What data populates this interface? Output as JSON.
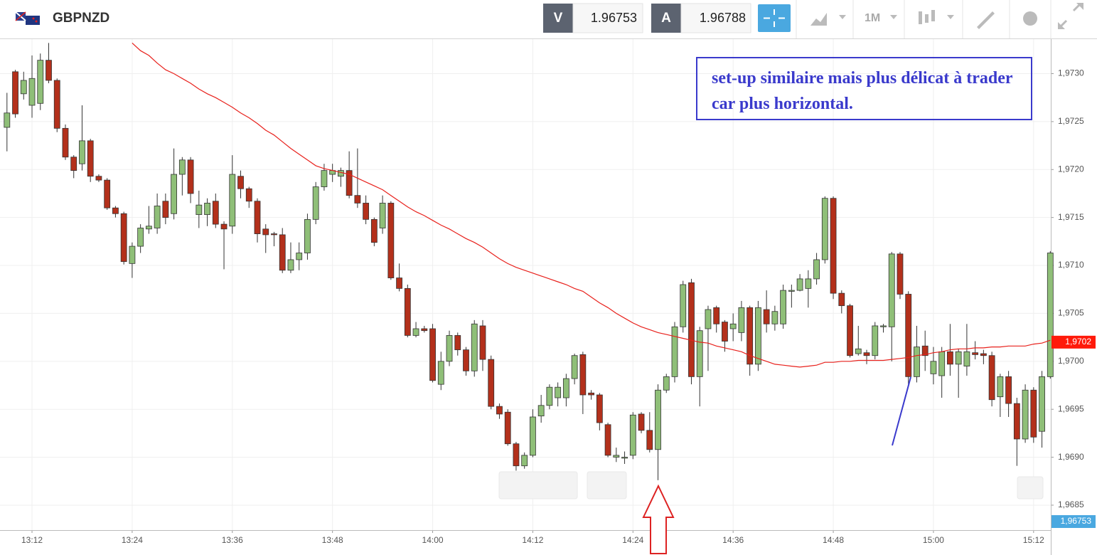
{
  "header": {
    "symbol": "GBPNZD",
    "bid_label": "V",
    "bid": "1.96753",
    "ask_label": "A",
    "ask": "1.96788",
    "timeframe": "1M"
  },
  "chart_data": {
    "type": "candlestick",
    "up_color": "#8fbf78",
    "down_color": "#b3301b",
    "grid": true,
    "x": [
      "13:09",
      "13:10",
      "13:11",
      "13:12",
      "13:13",
      "13:14",
      "13:15",
      "13:16",
      "13:17",
      "13:18",
      "13:19",
      "13:20",
      "13:21",
      "13:22",
      "13:23",
      "13:24",
      "13:25",
      "13:26",
      "13:27",
      "13:28",
      "13:29",
      "13:30",
      "13:31",
      "13:32",
      "13:33",
      "13:34",
      "13:35",
      "13:36",
      "13:37",
      "13:38",
      "13:39",
      "13:40",
      "13:41",
      "13:42",
      "13:43",
      "13:44",
      "13:45",
      "13:46",
      "13:47",
      "13:48",
      "13:49",
      "13:50",
      "13:51",
      "13:52",
      "13:53",
      "13:54",
      "13:55",
      "13:56",
      "13:57",
      "13:58",
      "13:59",
      "14:00",
      "14:01",
      "14:02",
      "14:03",
      "14:04",
      "14:05",
      "14:06",
      "14:07",
      "14:08",
      "14:09",
      "14:10",
      "14:11",
      "14:12",
      "14:13",
      "14:14",
      "14:15",
      "14:16",
      "14:17",
      "14:18",
      "14:19",
      "14:20",
      "14:21",
      "14:22",
      "14:23",
      "14:24",
      "14:25",
      "14:26",
      "14:27",
      "14:28",
      "14:29",
      "14:30",
      "14:31",
      "14:32",
      "14:33",
      "14:34",
      "14:35",
      "14:36",
      "14:37",
      "14:38",
      "14:39",
      "14:40",
      "14:41",
      "14:42",
      "14:43",
      "14:44",
      "14:45",
      "14:46",
      "14:47",
      "14:48",
      "14:49",
      "14:50",
      "14:51",
      "14:52",
      "14:53",
      "14:54",
      "14:55",
      "14:56",
      "14:57",
      "14:58",
      "14:59",
      "15:00",
      "15:01",
      "15:02",
      "15:03",
      "15:04",
      "15:05",
      "15:06",
      "15:07",
      "15:08",
      "15:09",
      "15:10",
      "15:11",
      "15:12",
      "15:13",
      "15:14"
    ],
    "open": [
      1.97244,
      1.97302,
      1.97279,
      1.97267,
      1.97269,
      1.97314,
      1.97293,
      1.97243,
      1.97213,
      1.97206,
      1.9723,
      1.97193,
      1.97189,
      1.9716,
      1.97154,
      1.97102,
      1.9712,
      1.97138,
      1.97139,
      1.97167,
      1.97154,
      1.97195,
      1.9721,
      1.97153,
      1.97153,
      1.97167,
      1.97143,
      1.97141,
      1.97193,
      1.9718,
      1.97167,
      1.97138,
      1.97133,
      1.97132,
      1.97095,
      1.97106,
      1.97113,
      1.97148,
      1.97182,
      1.97195,
      1.97193,
      1.97199,
      1.97173,
      1.97165,
      1.97148,
      1.97139,
      1.97165,
      1.97087,
      1.97076,
      1.97027,
      1.97034,
      1.97034,
      1.96976,
      1.97,
      1.97027,
      1.97012,
      1.9699,
      1.97037,
      1.97002,
      1.96953,
      1.96947,
      1.96914,
      1.96891,
      1.96902,
      1.96943,
      1.96954,
      1.96962,
      1.96962,
      1.96982,
      1.97007,
      1.96967,
      1.96965,
      1.96934,
      1.969,
      1.96899,
      1.96902,
      1.96945,
      1.96928,
      1.96908,
      1.9697,
      1.96984,
      1.97036,
      1.97082,
      1.96984,
      1.97034,
      1.97056,
      1.97041,
      1.97034,
      1.9703,
      1.97056,
      1.96997,
      1.97054,
      1.97039,
      1.97039,
      1.97073,
      1.97074,
      1.97076,
      1.97086,
      1.97106,
      1.9717,
      1.97071,
      1.97058,
      1.97008,
      1.97009,
      1.97006,
      1.97036,
      1.97036,
      1.97112,
      1.9707,
      1.96984,
      1.97016,
      1.96987,
      1.96985,
      1.9701,
      1.96997,
      1.96995,
      1.97009,
      1.97008,
      1.97006,
      1.96963,
      1.96984,
      1.96956,
      1.96919,
      1.9697,
      1.96927,
      1.96984
    ],
    "high": [
      1.9728,
      1.97304,
      1.97302,
      1.97319,
      1.97321,
      1.97332,
      1.97295,
      1.97247,
      1.97215,
      1.97267,
      1.97232,
      1.97195,
      1.97191,
      1.97162,
      1.97156,
      1.97124,
      1.97143,
      1.97162,
      1.97175,
      1.97175,
      1.97222,
      1.97213,
      1.97213,
      1.97178,
      1.9717,
      1.97175,
      1.97146,
      1.97215,
      1.97199,
      1.97182,
      1.9717,
      1.97143,
      1.97135,
      1.97139,
      1.97124,
      1.97124,
      1.97154,
      1.97187,
      1.97206,
      1.97206,
      1.97202,
      1.97219,
      1.97222,
      1.97173,
      1.9715,
      1.97173,
      1.97167,
      1.97102,
      1.9708,
      1.97041,
      1.97037,
      1.97039,
      1.9701,
      1.97032,
      1.9703,
      1.97015,
      1.97043,
      1.97043,
      1.97006,
      1.96956,
      1.9695,
      1.96916,
      1.96905,
      1.9695,
      1.96965,
      1.96976,
      1.96978,
      1.96987,
      1.97008,
      1.9701,
      1.9697,
      1.96967,
      1.96936,
      1.9691,
      1.96906,
      1.96947,
      1.96947,
      1.96947,
      1.96976,
      1.96987,
      1.97041,
      1.97084,
      1.97086,
      1.97036,
      1.97058,
      1.97058,
      1.97043,
      1.9705,
      1.97063,
      1.97058,
      1.97063,
      1.97074,
      1.97058,
      1.9708,
      1.9708,
      1.97091,
      1.97095,
      1.97113,
      1.97172,
      1.97172,
      1.97074,
      1.9706,
      1.97037,
      1.97012,
      1.97041,
      1.97039,
      1.97114,
      1.97114,
      1.97073,
      1.97037,
      1.97032,
      1.97015,
      1.97015,
      1.97039,
      1.97013,
      1.97039,
      1.97021,
      1.97012,
      1.9701,
      1.96987,
      1.9699,
      1.96962,
      1.96976,
      1.96973,
      1.9699,
      1.97115
    ],
    "low": [
      1.97219,
      1.97254,
      1.97273,
      1.97254,
      1.97262,
      1.9729,
      1.97239,
      1.9721,
      1.97191,
      1.97199,
      1.97187,
      1.97187,
      1.97158,
      1.9715,
      1.97101,
      1.97087,
      1.97113,
      1.97133,
      1.97133,
      1.97143,
      1.97148,
      1.97173,
      1.97165,
      1.97139,
      1.97141,
      1.97139,
      1.97096,
      1.97133,
      1.9717,
      1.9716,
      1.97124,
      1.97113,
      1.9712,
      1.97092,
      1.97092,
      1.97095,
      1.97106,
      1.97143,
      1.97178,
      1.97187,
      1.97182,
      1.9717,
      1.9716,
      1.97143,
      1.9712,
      1.97133,
      1.97085,
      1.97073,
      1.97025,
      1.97025,
      1.9703,
      1.96978,
      1.9697,
      1.96995,
      1.97006,
      1.96985,
      1.96984,
      1.9699,
      1.9695,
      1.9694,
      1.96912,
      1.96886,
      1.96888,
      1.969,
      1.96936,
      1.9695,
      1.96953,
      1.96953,
      1.96976,
      1.96945,
      1.9696,
      1.96928,
      1.969,
      1.96895,
      1.96893,
      1.96898,
      1.96925,
      1.96905,
      1.96876,
      1.96967,
      1.96978,
      1.9703,
      1.96976,
      1.96953,
      1.9699,
      1.9703,
      1.9701,
      1.97021,
      1.97021,
      1.96985,
      1.9699,
      1.9703,
      1.97032,
      1.97034,
      1.97056,
      1.97073,
      1.97056,
      1.9708,
      1.97102,
      1.97065,
      1.9705,
      1.97004,
      1.97006,
      1.96997,
      1.97002,
      1.9703,
      1.97,
      1.97065,
      1.96976,
      1.96978,
      1.9699,
      1.96976,
      1.96962,
      1.96985,
      1.96962,
      1.96985,
      1.97002,
      1.96997,
      1.96953,
      1.96942,
      1.96942,
      1.96891,
      1.96915,
      1.96915,
      1.9691,
      1.96982
    ],
    "close": [
      1.97259,
      1.97258,
      1.97293,
      1.97295,
      1.97314,
      1.97293,
      1.97243,
      1.97213,
      1.97199,
      1.9723,
      1.97193,
      1.97189,
      1.9716,
      1.97154,
      1.97104,
      1.9712,
      1.97139,
      1.97141,
      1.97162,
      1.9715,
      1.97195,
      1.9721,
      1.97175,
      1.97163,
      1.97165,
      1.97143,
      1.97138,
      1.97195,
      1.9718,
      1.97167,
      1.97133,
      1.97132,
      1.97132,
      1.97095,
      1.97106,
      1.97113,
      1.97148,
      1.97182,
      1.97199,
      1.97199,
      1.97199,
      1.97173,
      1.97165,
      1.97148,
      1.97124,
      1.97165,
      1.97087,
      1.97076,
      1.97027,
      1.97034,
      1.97032,
      1.9698,
      1.97,
      1.97027,
      1.97012,
      1.9699,
      1.97039,
      1.97002,
      1.96953,
      1.96945,
      1.96914,
      1.96891,
      1.96902,
      1.96942,
      1.96954,
      1.96973,
      1.96973,
      1.96982,
      1.97006,
      1.96965,
      1.96965,
      1.96936,
      1.96902,
      1.96902,
      1.969,
      1.96944,
      1.96928,
      1.96908,
      1.9697,
      1.96984,
      1.97036,
      1.9708,
      1.96984,
      1.97032,
      1.97054,
      1.97039,
      1.97021,
      1.97039,
      1.97056,
      1.96997,
      1.97056,
      1.97039,
      1.97052,
      1.97074,
      1.97074,
      1.97086,
      1.97086,
      1.97106,
      1.9717,
      1.97071,
      1.97058,
      1.97006,
      1.97013,
      1.97006,
      1.97037,
      1.97037,
      1.97112,
      1.9707,
      1.96984,
      1.97015,
      1.97006,
      1.97,
      1.9701,
      1.96997,
      1.9701,
      1.9701,
      1.97007,
      1.97006,
      1.9696,
      1.96984,
      1.96956,
      1.96919,
      1.9697,
      1.96921,
      1.96984,
      1.97113
    ],
    "moving_average": {
      "color": "#e8211c",
      "values": [
        null,
        null,
        null,
        null,
        null,
        null,
        null,
        null,
        null,
        null,
        null,
        null,
        null,
        null,
        null,
        1.97332,
        1.97324,
        1.97319,
        1.97311,
        1.97304,
        1.973,
        1.97295,
        1.9729,
        1.97284,
        1.97279,
        1.97275,
        1.9727,
        1.97265,
        1.97259,
        1.97254,
        1.97248,
        1.97241,
        1.97236,
        1.97229,
        1.97222,
        1.97216,
        1.9721,
        1.97204,
        1.97201,
        1.97199,
        1.97197,
        1.97195,
        1.97191,
        1.97187,
        1.97183,
        1.97179,
        1.97173,
        1.97167,
        1.97161,
        1.97156,
        1.97152,
        1.97147,
        1.97142,
        1.97138,
        1.97133,
        1.97128,
        1.97124,
        1.97119,
        1.97113,
        1.97107,
        1.97102,
        1.97098,
        1.97095,
        1.97092,
        1.97089,
        1.97086,
        1.97083,
        1.9708,
        1.97076,
        1.97073,
        1.97067,
        1.97061,
        1.97056,
        1.9705,
        1.97045,
        1.9704,
        1.97036,
        1.97033,
        1.9703,
        1.97028,
        1.97026,
        1.97024,
        1.97022,
        1.9702,
        1.97019,
        1.97016,
        1.97014,
        1.97012,
        1.9701,
        1.97006,
        1.97003,
        1.97,
        1.96997,
        1.96996,
        1.96995,
        1.96994,
        1.96995,
        1.96996,
        1.96999,
        1.96999,
        1.97,
        1.97,
        1.97001,
        1.97001,
        1.97001,
        1.97001,
        1.97002,
        1.97003,
        1.97004,
        1.97006,
        1.97007,
        1.97009,
        1.9701,
        1.97012,
        1.97013,
        1.97013,
        1.97014,
        1.97014,
        1.97015,
        1.97015,
        1.97016,
        1.97016,
        1.97016,
        1.97018,
        1.97019,
        1.97022
      ]
    },
    "ylim": [
      1.96824,
      1.97336
    ],
    "yticks": [
      {
        "value": 1.9685,
        "label": "1,9685"
      },
      {
        "value": 1.969,
        "label": "1,9690"
      },
      {
        "value": 1.9695,
        "label": "1,9695"
      },
      {
        "value": 1.97,
        "label": "1,9700"
      },
      {
        "value": 1.9705,
        "label": "1,9705"
      },
      {
        "value": 1.971,
        "label": "1,9710"
      },
      {
        "value": 1.9715,
        "label": "1,9715"
      },
      {
        "value": 1.972,
        "label": "1,9720"
      },
      {
        "value": 1.9725,
        "label": "1,9725"
      },
      {
        "value": 1.973,
        "label": "1,9730"
      }
    ],
    "xticks": [
      "13:12",
      "13:24",
      "13:36",
      "13:48",
      "14:00",
      "14:12",
      "14:24",
      "14:36",
      "14:48",
      "15:00",
      "15:12"
    ],
    "price_tags": [
      {
        "value": 1.9702,
        "label": "1,9702",
        "color": "#ff1a0a"
      },
      {
        "value": 1.96753,
        "label": "1,96753",
        "color": "#4aa8e0"
      }
    ],
    "annotation": {
      "text": "set-up similaire mais plus délicat à trader car plus horizontal.",
      "color": "#3a3acc"
    }
  }
}
